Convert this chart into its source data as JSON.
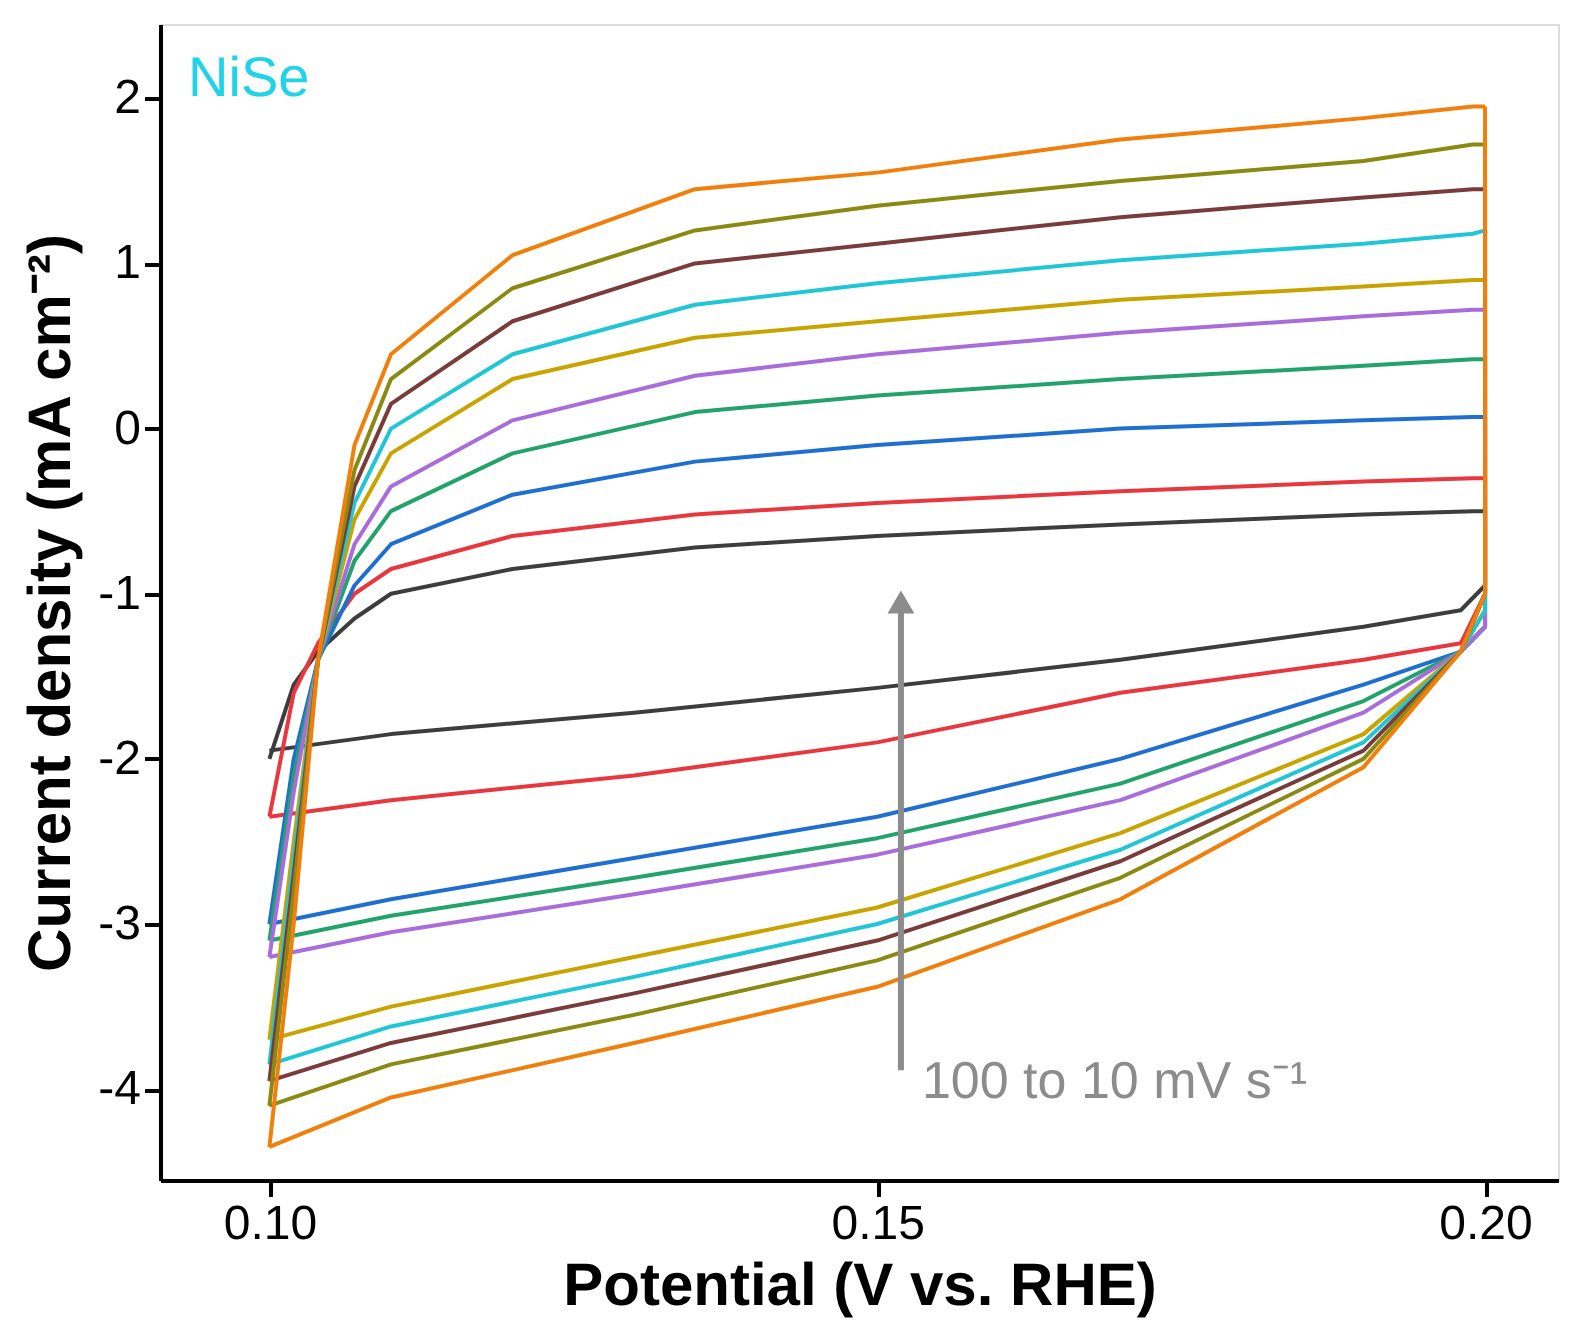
{
  "chart_data": {
    "type": "line",
    "title": "NiSe",
    "xlabel": "Potential (V vs. RHE)",
    "ylabel": "Current density (mA cm⁻²)",
    "annotations": [
      "100 to 10 mV s⁻¹"
    ],
    "xlim": [
      0.091,
      0.206
    ],
    "ylim": [
      -4.55,
      2.45
    ],
    "xticks": [
      {
        "value": 0.1,
        "label": "0.10"
      },
      0.15,
      {
        "value": 0.2,
        "label": "0.20"
      }
    ],
    "yticks": [
      -4,
      -3,
      -2,
      -1,
      0,
      1,
      2
    ],
    "grid": false,
    "legend": false,
    "marker": "none",
    "line_style": "solid",
    "series": [
      {
        "color": "#3d3d3d",
        "x": [
          0.1,
          0.102,
          0.104,
          0.107,
          0.11,
          0.12,
          0.135,
          0.15,
          0.17,
          0.19,
          0.199,
          0.2,
          0.2,
          0.198,
          0.19,
          0.17,
          0.15,
          0.13,
          0.11,
          0.1
        ],
        "values": [
          -2.0,
          -1.55,
          -1.35,
          -1.15,
          -1.0,
          -0.85,
          -0.72,
          -0.65,
          -0.58,
          -0.52,
          -0.5,
          -0.5,
          -0.95,
          -1.1,
          -1.2,
          -1.4,
          -1.57,
          -1.72,
          -1.85,
          -1.95
        ]
      },
      {
        "color": "#e8373e",
        "x": [
          0.1,
          0.102,
          0.104,
          0.107,
          0.11,
          0.12,
          0.135,
          0.15,
          0.17,
          0.19,
          0.199,
          0.2,
          0.2,
          0.198,
          0.19,
          0.17,
          0.15,
          0.13,
          0.11,
          0.1
        ],
        "values": [
          -2.35,
          -1.6,
          -1.3,
          -1.0,
          -0.85,
          -0.65,
          -0.52,
          -0.45,
          -0.38,
          -0.32,
          -0.3,
          -0.3,
          -1.0,
          -1.3,
          -1.4,
          -1.6,
          -1.9,
          -2.1,
          -2.25,
          -2.35
        ]
      },
      {
        "color": "#1f6fd0",
        "x": [
          0.1,
          0.102,
          0.104,
          0.107,
          0.11,
          0.12,
          0.135,
          0.15,
          0.17,
          0.19,
          0.199,
          0.2,
          0.2,
          0.198,
          0.19,
          0.17,
          0.15,
          0.13,
          0.11,
          0.1
        ],
        "values": [
          -3.0,
          -2.0,
          -1.4,
          -0.95,
          -0.7,
          -0.4,
          -0.2,
          -0.1,
          0.0,
          0.05,
          0.07,
          0.07,
          -1.2,
          -1.35,
          -1.55,
          -2.0,
          -2.35,
          -2.6,
          -2.85,
          -3.0
        ]
      },
      {
        "color": "#22a36b",
        "x": [
          0.1,
          0.102,
          0.104,
          0.107,
          0.11,
          0.12,
          0.135,
          0.15,
          0.17,
          0.19,
          0.199,
          0.2,
          0.2,
          0.198,
          0.19,
          0.17,
          0.15,
          0.13,
          0.11,
          0.1
        ],
        "values": [
          -3.1,
          -2.1,
          -1.4,
          -0.8,
          -0.5,
          -0.15,
          0.1,
          0.2,
          0.3,
          0.38,
          0.42,
          0.42,
          -1.2,
          -1.35,
          -1.65,
          -2.15,
          -2.48,
          -2.72,
          -2.95,
          -3.1
        ]
      },
      {
        "color": "#a96cdb",
        "x": [
          0.1,
          0.102,
          0.104,
          0.107,
          0.11,
          0.12,
          0.135,
          0.15,
          0.17,
          0.19,
          0.199,
          0.2,
          0.2,
          0.198,
          0.19,
          0.17,
          0.15,
          0.13,
          0.11,
          0.1
        ],
        "values": [
          -3.2,
          -2.2,
          -1.4,
          -0.7,
          -0.35,
          0.05,
          0.32,
          0.45,
          0.58,
          0.68,
          0.72,
          0.72,
          -1.2,
          -1.35,
          -1.72,
          -2.25,
          -2.58,
          -2.82,
          -3.05,
          -3.2
        ]
      },
      {
        "color": "#c8a400",
        "x": [
          0.1,
          0.102,
          0.104,
          0.107,
          0.11,
          0.12,
          0.135,
          0.15,
          0.17,
          0.19,
          0.199,
          0.2,
          0.2,
          0.198,
          0.19,
          0.17,
          0.15,
          0.13,
          0.11,
          0.1
        ],
        "values": [
          -3.7,
          -2.5,
          -1.4,
          -0.55,
          -0.15,
          0.3,
          0.55,
          0.65,
          0.78,
          0.86,
          0.9,
          0.9,
          -1.1,
          -1.35,
          -1.85,
          -2.45,
          -2.9,
          -3.2,
          -3.5,
          -3.7
        ]
      },
      {
        "color": "#21c6d6",
        "x": [
          0.1,
          0.102,
          0.104,
          0.107,
          0.11,
          0.12,
          0.135,
          0.15,
          0.17,
          0.19,
          0.199,
          0.2,
          0.2,
          0.198,
          0.19,
          0.17,
          0.15,
          0.13,
          0.11,
          0.1
        ],
        "values": [
          -3.85,
          -2.6,
          -1.4,
          -0.45,
          0.0,
          0.45,
          0.75,
          0.88,
          1.02,
          1.12,
          1.18,
          1.2,
          -1.1,
          -1.35,
          -1.9,
          -2.55,
          -3.0,
          -3.32,
          -3.62,
          -3.85
        ]
      },
      {
        "color": "#7a3b3b",
        "x": [
          0.1,
          0.102,
          0.104,
          0.107,
          0.11,
          0.12,
          0.135,
          0.15,
          0.17,
          0.19,
          0.199,
          0.2,
          0.2,
          0.198,
          0.19,
          0.17,
          0.15,
          0.13,
          0.11,
          0.1
        ],
        "values": [
          -3.95,
          -2.7,
          -1.4,
          -0.35,
          0.15,
          0.65,
          1.0,
          1.12,
          1.28,
          1.4,
          1.45,
          1.45,
          -1.0,
          -1.35,
          -1.95,
          -2.62,
          -3.1,
          -3.42,
          -3.72,
          -3.95
        ]
      },
      {
        "color": "#8a8a12",
        "x": [
          0.1,
          0.102,
          0.104,
          0.107,
          0.11,
          0.12,
          0.135,
          0.15,
          0.17,
          0.19,
          0.199,
          0.2,
          0.2,
          0.198,
          0.19,
          0.17,
          0.15,
          0.13,
          0.11,
          0.1
        ],
        "values": [
          -4.1,
          -2.8,
          -1.4,
          -0.25,
          0.3,
          0.85,
          1.2,
          1.35,
          1.5,
          1.62,
          1.72,
          1.72,
          -1.0,
          -1.35,
          -2.0,
          -2.72,
          -3.22,
          -3.55,
          -3.85,
          -4.1
        ]
      },
      {
        "color": "#f07f0c",
        "x": [
          0.1,
          0.102,
          0.104,
          0.107,
          0.11,
          0.12,
          0.135,
          0.15,
          0.17,
          0.19,
          0.199,
          0.2,
          0.2,
          0.198,
          0.19,
          0.17,
          0.15,
          0.13,
          0.11,
          0.1
        ],
        "values": [
          -4.35,
          -3.0,
          -1.4,
          -0.1,
          0.45,
          1.05,
          1.45,
          1.55,
          1.75,
          1.88,
          1.95,
          1.95,
          -1.0,
          -1.35,
          -2.05,
          -2.85,
          -3.38,
          -3.72,
          -4.05,
          -4.35
        ]
      }
    ]
  }
}
